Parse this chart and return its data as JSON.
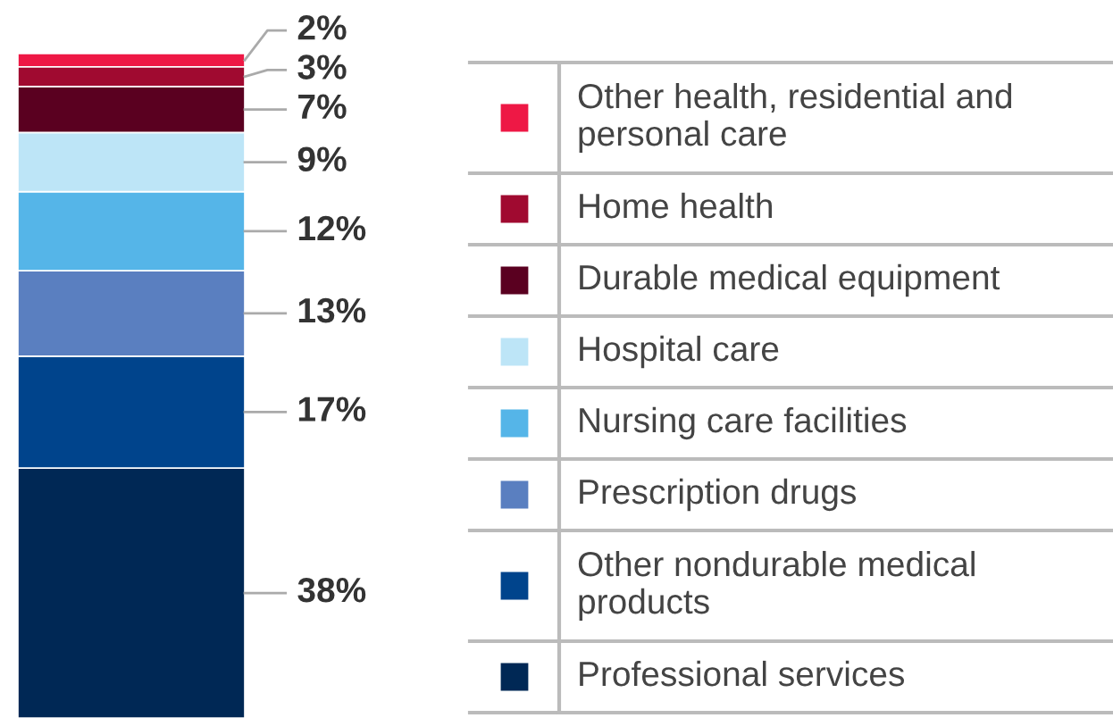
{
  "chart_data": {
    "type": "bar",
    "stacked": true,
    "categories": [
      null
    ],
    "legend": "right",
    "series": [
      {
        "name": "Professional services",
        "color": "#002855",
        "values": [
          38
        ],
        "value_labels": [
          "38%"
        ]
      },
      {
        "name": "Other nondurable medical products",
        "color": "#00448c",
        "values": [
          17
        ],
        "value_labels": [
          "17%"
        ]
      },
      {
        "name": "Prescription drugs",
        "color": "#5a7fc0",
        "values": [
          13
        ],
        "value_labels": [
          "13%"
        ]
      },
      {
        "name": "Nursing care facilities",
        "color": "#55b5e8",
        "values": [
          12
        ],
        "value_labels": [
          "12%"
        ]
      },
      {
        "name": "Hospital care",
        "color": "#bde5f7",
        "values": [
          9
        ],
        "value_labels": [
          "9%"
        ]
      },
      {
        "name": "Durable medical equipment",
        "color": "#5a0020",
        "values": [
          7
        ],
        "value_labels": [
          "7%"
        ]
      },
      {
        "name": "Home health",
        "color": "#a00a30",
        "values": [
          3
        ],
        "value_labels": [
          "3%"
        ]
      },
      {
        "name": "Other health, residential and personal care",
        "color": "#ee1845",
        "values": [
          2
        ],
        "value_labels": [
          "2%"
        ]
      }
    ]
  }
}
